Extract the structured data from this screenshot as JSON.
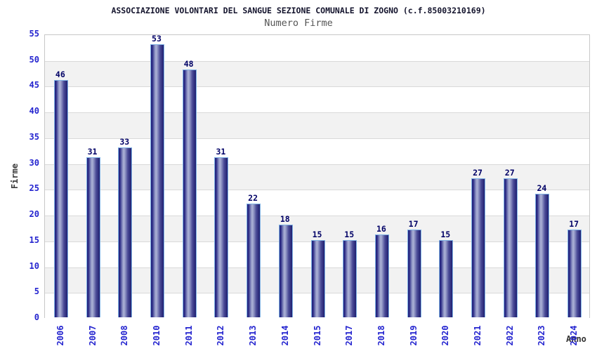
{
  "header": {
    "title": "ASSOCIAZIONE VOLONTARI DEL SANGUE SEZIONE COMUNALE DI ZOGNO (c.f.85003210169)",
    "subtitle": "Numero Firme"
  },
  "chart_data": {
    "type": "bar",
    "title": "ASSOCIAZIONE VOLONTARI DEL SANGUE SEZIONE COMUNALE DI ZOGNO (c.f.85003210169)",
    "subtitle": "Numero Firme",
    "xlabel": "Anno",
    "ylabel": "Firme",
    "categories": [
      "2006",
      "2007",
      "2008",
      "2010",
      "2011",
      "2012",
      "2013",
      "2014",
      "2015",
      "2017",
      "2018",
      "2019",
      "2020",
      "2021",
      "2022",
      "2023",
      "2024"
    ],
    "values": [
      46,
      31,
      33,
      53,
      48,
      31,
      22,
      18,
      15,
      15,
      16,
      17,
      15,
      27,
      27,
      24,
      17
    ],
    "ylim": [
      0,
      55
    ],
    "yticks": [
      0,
      5,
      10,
      15,
      20,
      25,
      30,
      35,
      40,
      45,
      50,
      55
    ],
    "grid": true,
    "legend_position": "none",
    "value_labels_shown": true,
    "colors": {
      "bar_gradient_dark": "#23237d",
      "bar_gradient_light": "#adb2d6",
      "bar_border": "#7fb2e4",
      "tick_label": "#2424cf",
      "value_label": "#000066",
      "axis_title": "#3a3a3a",
      "title_text": "#14142d",
      "subtitle_text": "#555555",
      "band_fill": "#f2f2f2",
      "gridline": "#d9d9d9",
      "plot_border": "#c8c8c8",
      "background": "#ffffff"
    }
  }
}
